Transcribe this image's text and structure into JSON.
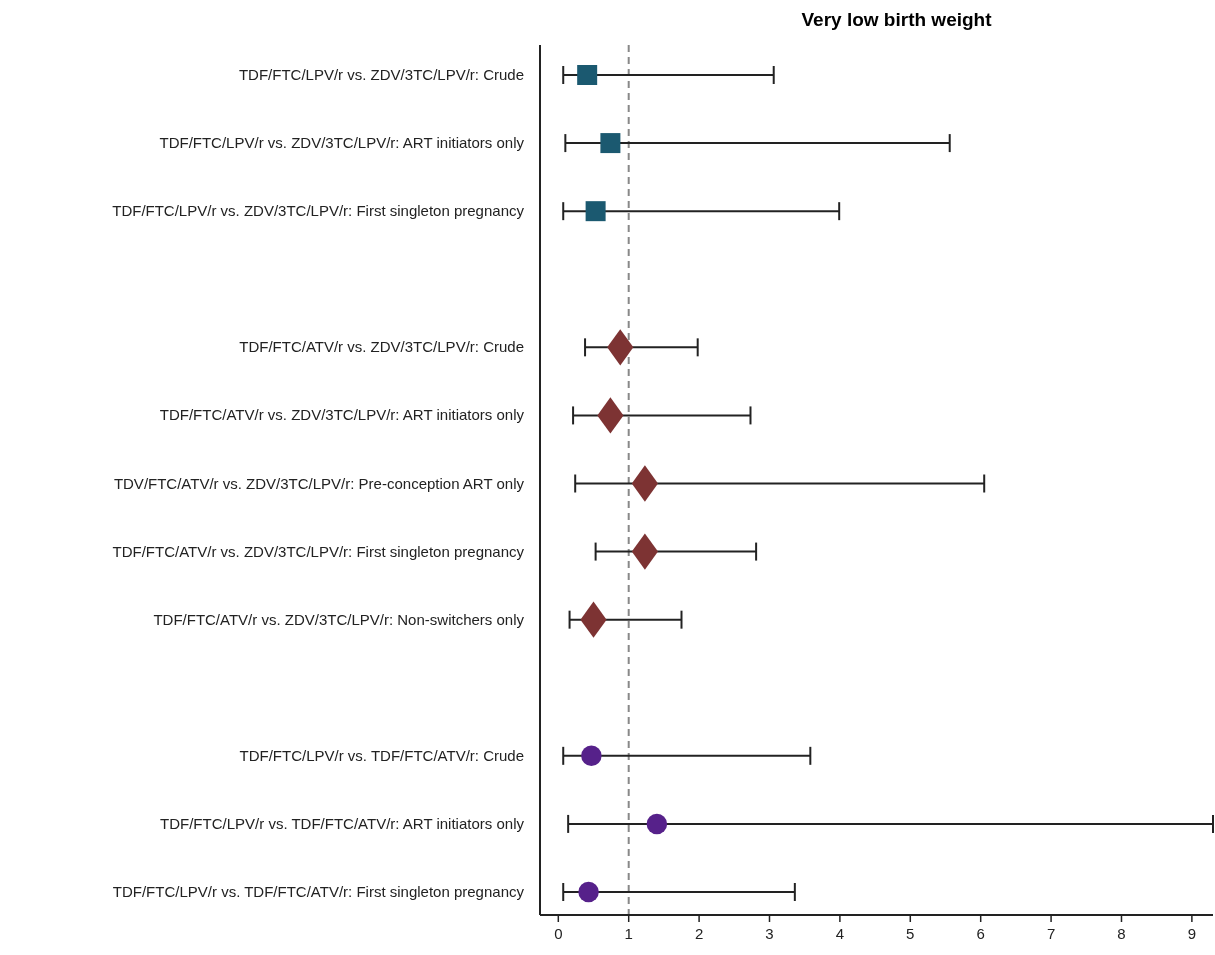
{
  "chart_data": {
    "type": "scatter",
    "orientation": "horizontal",
    "title": "Very low birth weight",
    "categories": [
      "TDF/FTC/LPV/r vs. ZDV/3TC/LPV/r: Crude",
      "TDF/FTC/LPV/r vs. ZDV/3TC/LPV/r: ART initiators only",
      "TDF/FTC/LPV/r vs. ZDV/3TC/LPV/r: First singleton pregnancy",
      null,
      "TDF/FTC/ATV/r vs. ZDV/3TC/LPV/r: Crude",
      "TDF/FTC/ATV/r vs. ZDV/3TC/LPV/r: ART initiators only",
      "TDV/FTC/ATV/r vs. ZDV/3TC/LPV/r: Pre-conception ART only",
      "TDF/FTC/ATV/r vs. ZDV/3TC/LPV/r: First singleton pregnancy",
      "TDF/FTC/ATV/r vs. ZDV/3TC/LPV/r: Non-switchers only",
      null,
      "TDF/FTC/LPV/r vs. TDF/FTC/ATV/r: Crude",
      "TDF/FTC/LPV/r vs. TDF/FTC/ATV/r: ART initiators only",
      "TDF/FTC/LPV/r vs. TDF/FTC/ATV/r: First singleton pregnancy"
    ],
    "series": [
      {
        "color": "#1b5970",
        "marker": "square",
        "values": [
          0.41,
          0.74,
          0.53,
          null,
          null,
          null,
          null,
          null,
          null,
          null,
          null,
          null,
          null
        ],
        "errors": [
          [
            0.07,
            3.06
          ],
          [
            0.1,
            5.56
          ],
          [
            0.07,
            3.99
          ],
          null,
          null,
          null,
          null,
          null,
          null,
          null,
          null,
          null,
          null
        ]
      },
      {
        "color": "#7d3333",
        "marker": "diamond",
        "values": [
          null,
          null,
          null,
          null,
          0.88,
          0.74,
          1.23,
          1.23,
          0.5,
          null,
          null,
          null,
          null
        ],
        "errors": [
          null,
          null,
          null,
          null,
          [
            0.38,
            1.98
          ],
          [
            0.21,
            2.73
          ],
          [
            0.24,
            6.05
          ],
          [
            0.53,
            2.81
          ],
          [
            0.16,
            1.75
          ],
          null,
          null,
          null,
          null
        ]
      },
      {
        "color": "#56218a",
        "marker": "circle",
        "values": [
          null,
          null,
          null,
          null,
          null,
          null,
          null,
          null,
          null,
          null,
          0.47,
          1.4,
          0.43
        ],
        "errors": [
          null,
          null,
          null,
          null,
          null,
          null,
          null,
          null,
          null,
          null,
          [
            0.07,
            3.58
          ],
          [
            0.14,
            9.3
          ],
          [
            0.07,
            3.36
          ]
        ]
      }
    ],
    "xlim": [
      -0.26,
      9.3
    ],
    "xticks": [
      0,
      1,
      2,
      3,
      4,
      5,
      6,
      7,
      8,
      9
    ],
    "ref_lines": [
      {
        "axis": "x",
        "value": 1,
        "color": "#888888",
        "line_style": "dashed"
      }
    ]
  }
}
